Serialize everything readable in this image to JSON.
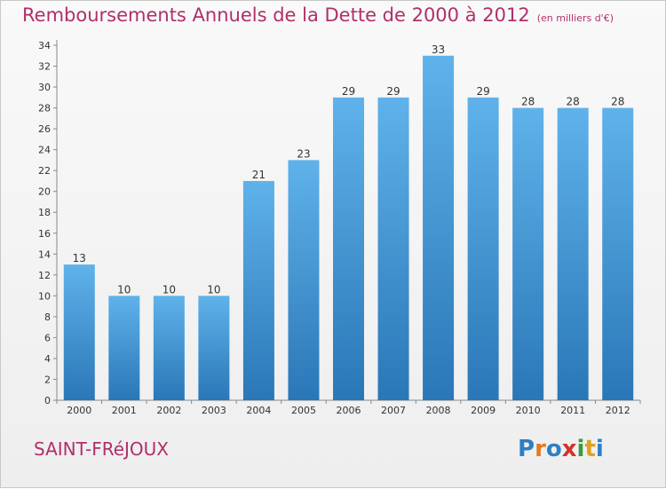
{
  "title": "Remboursements Annuels de la Dette de 2000 à 2012",
  "subtitle": "(en milliers d'€)",
  "commune": "SAINT-FRéJOUX",
  "logo_text": "Proxiti",
  "colors": {
    "title": "#b0306a",
    "bar_top": "#5fb2ea",
    "bar_bottom": "#2a77b7"
  },
  "chart_data": {
    "type": "bar",
    "title": "Remboursements Annuels de la Dette de 2000 à 2012",
    "subtitle": "(en milliers d'€)",
    "categories": [
      "2000",
      "2001",
      "2002",
      "2003",
      "2004",
      "2005",
      "2006",
      "2007",
      "2008",
      "2009",
      "2010",
      "2011",
      "2012"
    ],
    "values": [
      13,
      10,
      10,
      10,
      21,
      23,
      29,
      29,
      33,
      29,
      28,
      28,
      28
    ],
    "ylim": [
      0,
      34
    ],
    "yticks": [
      0,
      2,
      4,
      6,
      8,
      10,
      12,
      14,
      16,
      18,
      20,
      22,
      24,
      26,
      28,
      30,
      32,
      34
    ],
    "grid": false,
    "data_labels": true
  }
}
